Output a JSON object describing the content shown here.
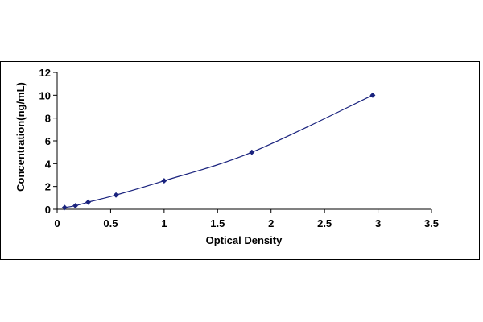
{
  "chart_data": {
    "type": "scatter",
    "title": "",
    "xlabel": "Optical Density",
    "ylabel": "Concentration(ng/mL)",
    "xlim": [
      0,
      3.5
    ],
    "ylim": [
      0,
      12
    ],
    "xticks": [
      0,
      0.5,
      1,
      1.5,
      2,
      2.5,
      3,
      3.5
    ],
    "yticks": [
      0,
      2,
      4,
      6,
      8,
      10,
      12
    ],
    "xtick_labels": [
      "0",
      "0.5",
      "1",
      "1.5",
      "2",
      "2.5",
      "3",
      "3.5"
    ],
    "ytick_labels": [
      "0",
      "2",
      "4",
      "6",
      "8",
      "10",
      "12"
    ],
    "grid": false,
    "legend": "none",
    "marker": "diamond",
    "marker_color": "#1a237e",
    "line_color": "#1a237e",
    "series": [
      {
        "x": [
          0.07,
          0.17,
          0.29,
          0.55,
          1.0,
          1.82,
          2.95
        ],
        "y": [
          0.156,
          0.3125,
          0.625,
          1.25,
          2.5,
          5.0,
          10.0
        ]
      }
    ]
  }
}
